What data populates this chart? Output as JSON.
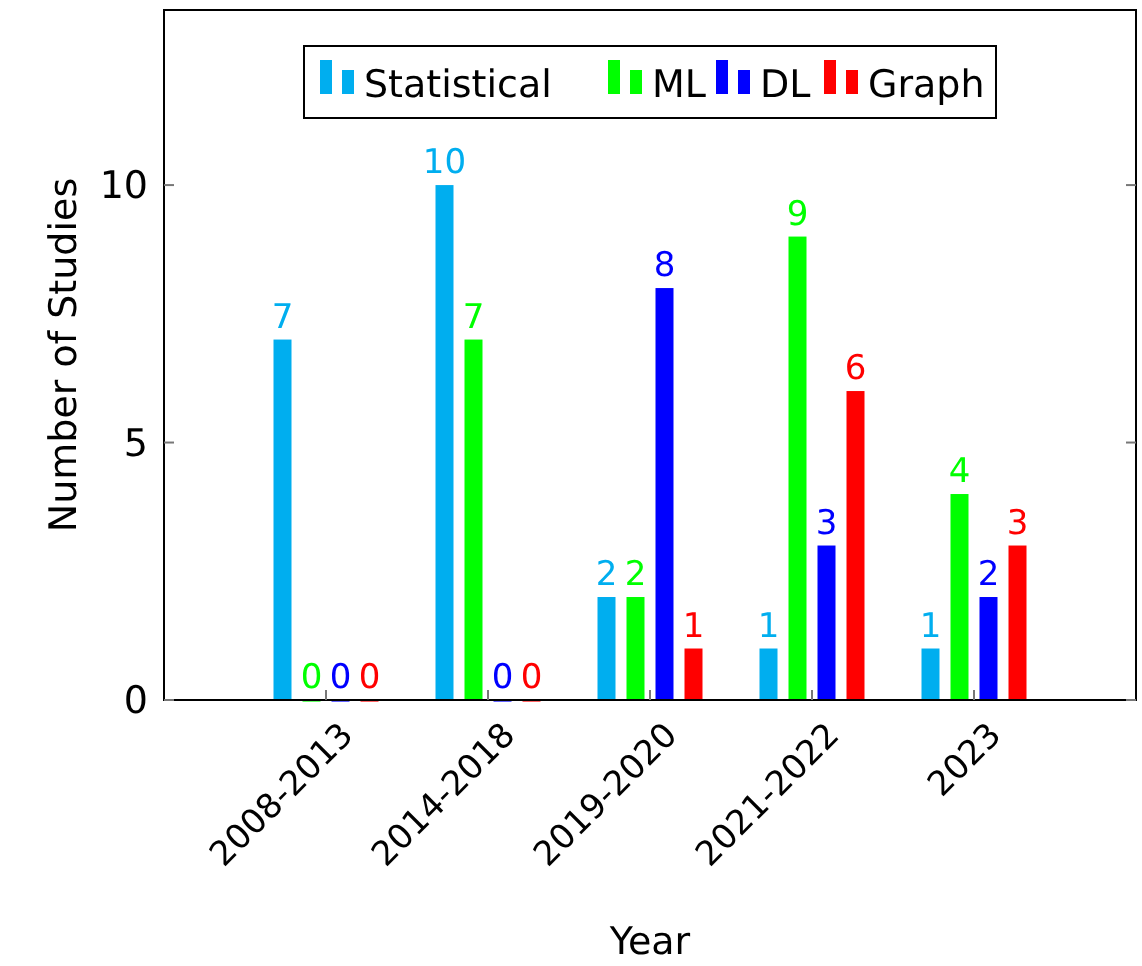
{
  "chart_data": {
    "type": "bar",
    "xlabel": "Year",
    "ylabel": "Number of Studies",
    "categories": [
      "2008-2013",
      "2014-2018",
      "2019-2020",
      "2021-2022",
      "2023"
    ],
    "series": [
      {
        "name": "Statistical",
        "color": "#00aeef",
        "values": [
          7,
          10,
          2,
          1,
          1
        ]
      },
      {
        "name": "ML",
        "color": "#00ff00",
        "values": [
          0,
          7,
          2,
          9,
          4
        ]
      },
      {
        "name": "DL",
        "color": "#0000ff",
        "values": [
          0,
          0,
          8,
          3,
          2
        ]
      },
      {
        "name": "Graph",
        "color": "#ff0000",
        "values": [
          0,
          0,
          1,
          6,
          3
        ]
      }
    ],
    "ylim": [
      0,
      13.4
    ],
    "yticks": [
      0,
      5,
      10
    ],
    "grid": false,
    "legend": "top",
    "data_labels": true
  }
}
